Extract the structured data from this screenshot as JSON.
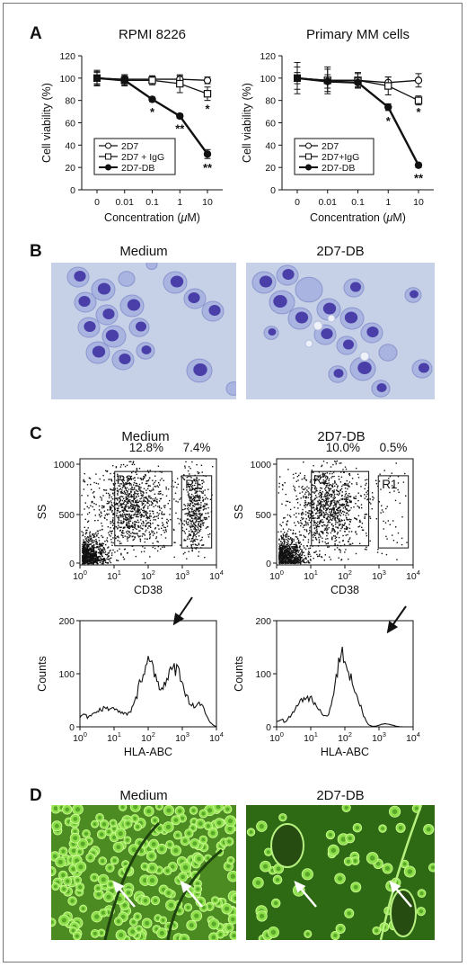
{
  "panels": {
    "a": "A",
    "b": "B",
    "c": "C",
    "d": "D"
  },
  "chart_data": [
    {
      "type": "line",
      "title": "RPMI 8226",
      "xlabel_pre": "Concentration (",
      "xlabel_mu": "μ",
      "xlabel_post": "M)",
      "ylabel": "Cell viability (%)",
      "categories": [
        "0",
        "0.01",
        "0.1",
        "1",
        "10"
      ],
      "ylim": [
        0,
        120
      ],
      "yticks": [
        "0",
        "20",
        "40",
        "60",
        "80",
        "100",
        "120"
      ],
      "legend_position": "bottom-left",
      "series": [
        {
          "name": "2D7",
          "marker": "open-circle",
          "values": [
            100,
            99,
            99,
            99,
            98
          ],
          "err": [
            6,
            4,
            3,
            3,
            3
          ]
        },
        {
          "name": "2D7 + IgG",
          "marker": "open-square",
          "values": [
            100,
            98,
            98,
            95,
            86
          ],
          "err": [
            7,
            5,
            4,
            8,
            6
          ]
        },
        {
          "name": "2D7-DB",
          "marker": "filled-circle",
          "values": [
            100,
            98,
            81,
            66,
            32
          ],
          "err": [
            5,
            4,
            2,
            2,
            4
          ]
        }
      ],
      "annotations": [
        {
          "category": "0.1",
          "y": 70,
          "text": "*"
        },
        {
          "category": "1",
          "y": 55,
          "text": "**"
        },
        {
          "category": "10",
          "y": 20,
          "text": "**"
        },
        {
          "category": "10",
          "y": 73,
          "text": "*"
        }
      ]
    },
    {
      "type": "line",
      "title": "Primary MM cells",
      "xlabel_pre": "Concentration (",
      "xlabel_mu": "μ",
      "xlabel_post": "M)",
      "ylabel": "Cell viability (%)",
      "categories": [
        "0",
        "0.01",
        "0.1",
        "1",
        "10"
      ],
      "ylim": [
        0,
        120
      ],
      "yticks": [
        "0",
        "20",
        "40",
        "60",
        "80",
        "100",
        "120"
      ],
      "legend_position": "bottom-left",
      "series": [
        {
          "name": "2D7",
          "marker": "open-circle",
          "values": [
            100,
            98,
            98,
            96,
            98
          ],
          "err": [
            14,
            12,
            6,
            5,
            6
          ]
        },
        {
          "name": "2D7+IgG",
          "marker": "open-square",
          "values": [
            100,
            98,
            98,
            93,
            80
          ],
          "err": [
            10,
            10,
            7,
            8,
            4
          ]
        },
        {
          "name": "2D7-DB",
          "marker": "filled-circle",
          "values": [
            100,
            97,
            96,
            74,
            22
          ],
          "err": [
            5,
            6,
            4,
            3,
            2
          ]
        }
      ],
      "annotations": [
        {
          "category": "1",
          "y": 62,
          "text": "*"
        },
        {
          "category": "10",
          "y": 70,
          "text": "*"
        },
        {
          "category": "10",
          "y": 11,
          "text": "**"
        }
      ]
    }
  ],
  "micro_b": {
    "left_title": "Medium",
    "right_title": "2D7-DB",
    "colors": {
      "bg": "#c6d0e6",
      "cell": "#a9b4e0",
      "nucleus": "#4a3ea8"
    }
  },
  "flow_scatter": {
    "left_title": "Medium",
    "right_title": "2D7-DB",
    "xlabel": "CD38",
    "ylabel": "SS",
    "yticks": [
      "0",
      "500",
      "1000"
    ],
    "xticks": [
      {
        "b": "10",
        "e": "0"
      },
      {
        "b": "10",
        "e": "1"
      },
      {
        "b": "10",
        "e": "2"
      },
      {
        "b": "10",
        "e": "3"
      },
      {
        "b": "10",
        "e": "4"
      }
    ],
    "gates": [
      "R2",
      "R1"
    ],
    "left_pct": [
      "12.8%",
      "7.4%"
    ],
    "right_pct": [
      "10.0%",
      "0.5%"
    ]
  },
  "flow_hist": {
    "xlabel": "HLA-ABC",
    "ylabel": "Counts",
    "yticks": [
      "0",
      "100",
      "200"
    ],
    "xticks": [
      {
        "b": "10",
        "e": "0"
      },
      {
        "b": "10",
        "e": "1"
      },
      {
        "b": "10",
        "e": "2"
      },
      {
        "b": "10",
        "e": "3"
      },
      {
        "b": "10",
        "e": "4"
      }
    ]
  },
  "micro_d": {
    "left_title": "Medium",
    "right_title": "2D7-DB",
    "colors": {
      "bg": "#2e6a14",
      "cell": "#8ee04c"
    }
  }
}
